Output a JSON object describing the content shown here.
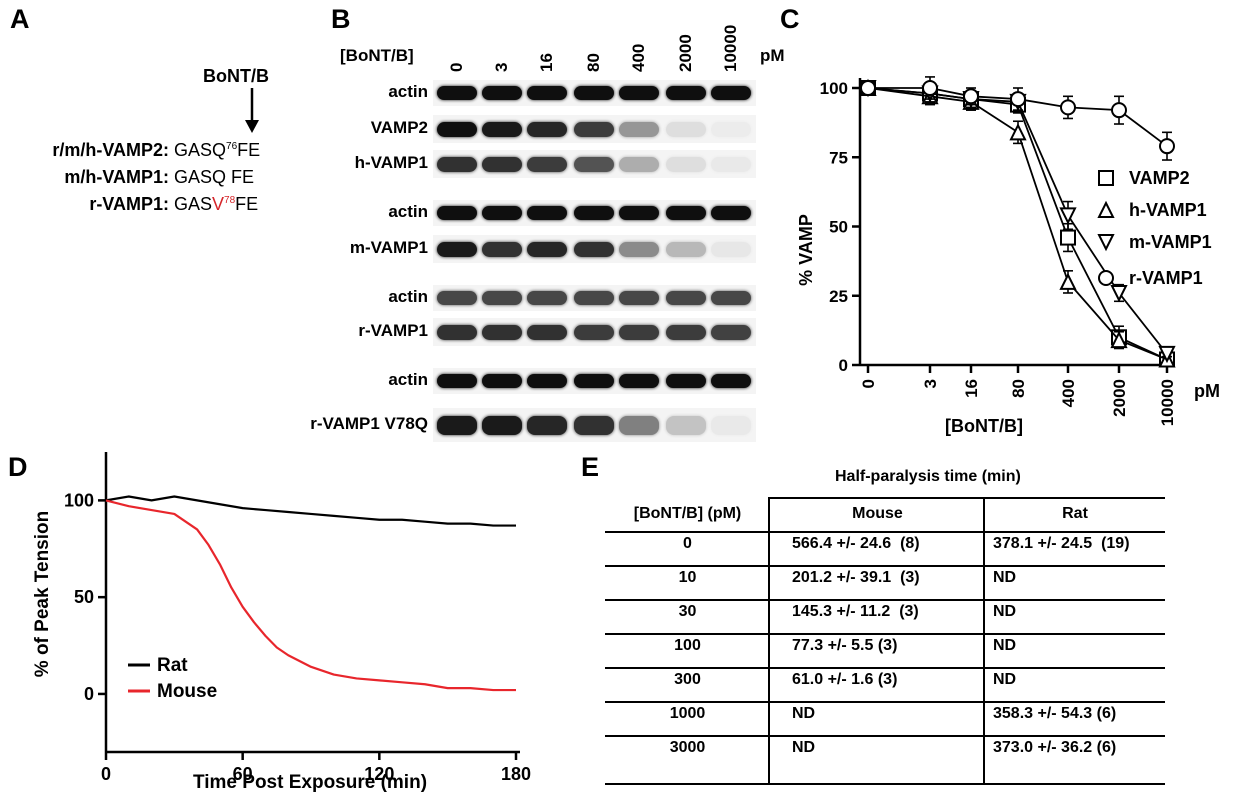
{
  "panels": {
    "a": "A",
    "b": "B",
    "c": "C",
    "d": "D",
    "e": "E"
  },
  "panel_a": {
    "toxin": "BoNT/B",
    "rows": [
      {
        "name": "r/m/h-VAMP2:",
        "pre": "GASQ",
        "sup": "76",
        "post": "FE",
        "mutant": false
      },
      {
        "name": "m/h-VAMP1:",
        "pre": "GASQ",
        "sup": "",
        "post": " FE",
        "mutant": false
      },
      {
        "name": "r-VAMP1:",
        "pre": "GAS",
        "mut": "V",
        "sup": "78",
        "post": "FE",
        "mutant": true
      }
    ],
    "colors": {
      "mutation": "#d6262b"
    }
  },
  "panel_b": {
    "conc_label": "[BoNT/B]",
    "unit": "pM",
    "lanes": [
      "0",
      "3",
      "16",
      "80",
      "400",
      "2000",
      "10000"
    ],
    "blots": [
      {
        "label": "actin",
        "intensity": [
          1,
          1,
          1,
          1,
          1,
          1,
          1
        ]
      },
      {
        "label": "VAMP2",
        "intensity": [
          1,
          0.95,
          0.9,
          0.8,
          0.4,
          0.08,
          0.02
        ]
      },
      {
        "label": "h-VAMP1",
        "intensity": [
          0.85,
          0.85,
          0.8,
          0.7,
          0.3,
          0.08,
          0.03
        ]
      },
      {
        "label": "actin",
        "intensity": [
          1,
          1,
          1,
          1,
          1,
          1,
          1
        ]
      },
      {
        "label": "m-VAMP1",
        "intensity": [
          0.95,
          0.85,
          0.9,
          0.85,
          0.45,
          0.25,
          0.04
        ]
      },
      {
        "label": "actin",
        "intensity": [
          0.75,
          0.75,
          0.75,
          0.75,
          0.75,
          0.75,
          0.75
        ]
      },
      {
        "label": "r-VAMP1",
        "intensity": [
          0.85,
          0.85,
          0.85,
          0.8,
          0.8,
          0.8,
          0.78
        ]
      },
      {
        "label": "actin",
        "intensity": [
          1,
          1,
          1,
          1,
          1,
          1,
          1
        ]
      },
      {
        "label": "r-VAMP1 V78Q",
        "intensity": [
          0.95,
          0.95,
          0.9,
          0.85,
          0.5,
          0.2,
          0.03
        ]
      }
    ]
  },
  "chart_data": [
    {
      "type": "line",
      "panel": "C",
      "ylabel": "% VAMP",
      "xlabel": "[BoNT/B]",
      "x_unit": "pM",
      "categories": [
        "0",
        "3",
        "16",
        "80",
        "400",
        "2000",
        "10000"
      ],
      "yticks": [
        0,
        25,
        50,
        75,
        100
      ],
      "ylim": [
        0,
        108
      ],
      "legend_position": "right",
      "series": [
        {
          "name": "VAMP2",
          "marker": "square",
          "values": [
            100,
            98,
            96,
            94,
            46,
            10,
            2
          ],
          "err": [
            2,
            3,
            3,
            3,
            5,
            4,
            1
          ]
        },
        {
          "name": "h-VAMP1",
          "marker": "triangle-up",
          "values": [
            100,
            97,
            95,
            84,
            30,
            9,
            2
          ],
          "err": [
            2,
            3,
            3,
            4,
            4,
            3,
            1
          ]
        },
        {
          "name": "m-VAMP1",
          "marker": "triangle-down",
          "values": [
            100,
            98,
            96,
            95,
            54,
            26,
            4
          ],
          "err": [
            2,
            3,
            3,
            3,
            5,
            3,
            1
          ]
        },
        {
          "name": "r-VAMP1",
          "marker": "circle",
          "values": [
            100,
            100,
            97,
            96,
            93,
            92,
            79
          ],
          "err": [
            2,
            4,
            3,
            4,
            4,
            5,
            5
          ]
        }
      ]
    },
    {
      "type": "line",
      "panel": "D",
      "ylabel": "% of Peak Tension",
      "xlabel": "Time Post Exposure (min)",
      "xticks": [
        0,
        60,
        120,
        180
      ],
      "yticks": [
        0,
        50,
        100
      ],
      "xlim": [
        0,
        180
      ],
      "ylim": [
        -30,
        125
      ],
      "legend_position": "bottom-left",
      "series": [
        {
          "name": "Rat",
          "color": "#000000",
          "x": [
            0,
            10,
            20,
            30,
            40,
            50,
            60,
            70,
            80,
            90,
            100,
            110,
            120,
            130,
            140,
            150,
            160,
            170,
            180
          ],
          "values": [
            100,
            102,
            100,
            102,
            100,
            98,
            96,
            95,
            94,
            93,
            92,
            91,
            90,
            90,
            89,
            88,
            88,
            87,
            87
          ]
        },
        {
          "name": "Mouse",
          "color": "#e8262c",
          "x": [
            0,
            10,
            20,
            30,
            40,
            45,
            50,
            55,
            60,
            65,
            70,
            75,
            80,
            90,
            100,
            110,
            120,
            130,
            140,
            150,
            160,
            170,
            180
          ],
          "values": [
            100,
            97,
            95,
            93,
            85,
            77,
            67,
            55,
            45,
            37,
            30,
            24,
            20,
            14,
            10,
            8,
            7,
            6,
            5,
            3,
            3,
            2,
            2
          ]
        }
      ]
    }
  ],
  "panel_e": {
    "title": "Half-paralysis time (min)",
    "headers": [
      "[BoNT/B] (pM)",
      "Mouse",
      "Rat"
    ],
    "rows": [
      [
        "0",
        "566.4 +/- 24.6  (8)",
        "378.1 +/- 24.5  (19)"
      ],
      [
        "10",
        "201.2 +/- 39.1  (3)",
        "ND"
      ],
      [
        "30",
        "145.3 +/- 11.2  (3)",
        "ND"
      ],
      [
        "100",
        "77.3 +/- 5.5 (3)",
        "ND"
      ],
      [
        "300",
        "61.0 +/- 1.6 (3)",
        "ND"
      ],
      [
        "1000",
        "ND",
        "358.3 +/- 54.3 (6)"
      ],
      [
        "3000",
        "ND",
        "373.0 +/- 36.2 (6)"
      ]
    ]
  }
}
